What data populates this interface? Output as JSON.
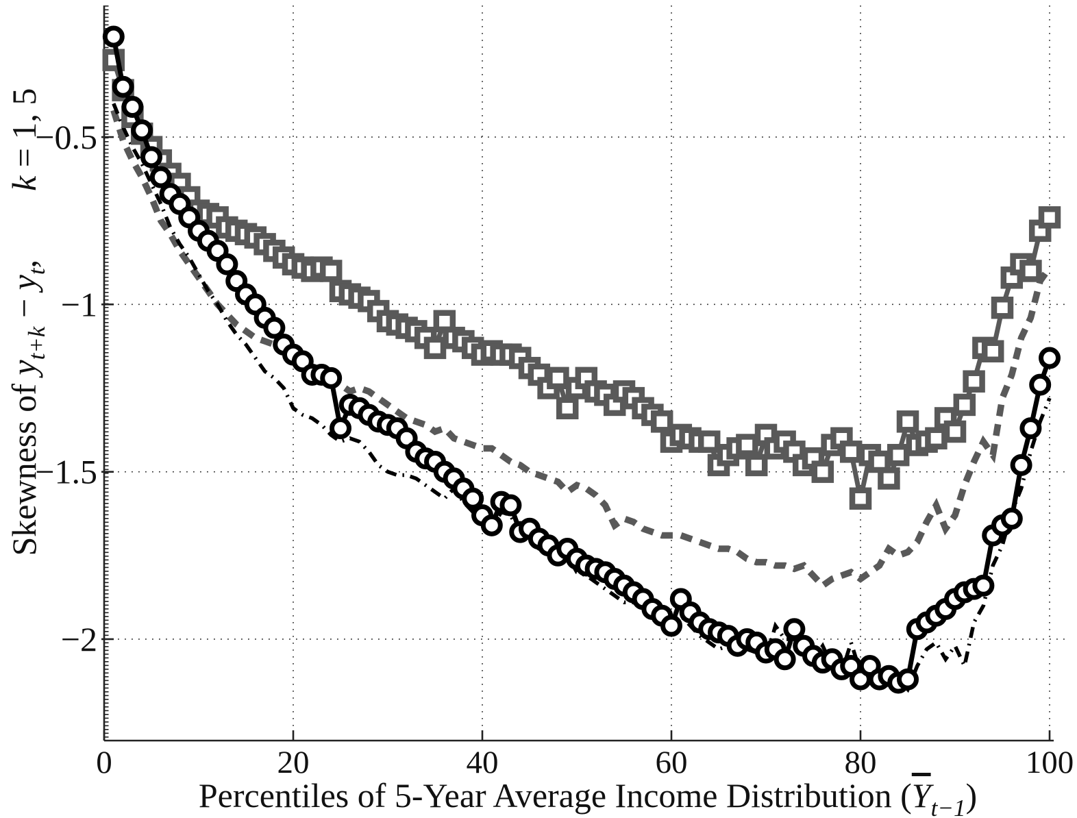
{
  "figure": {
    "background": "#ffffff",
    "axis_color": "#222222",
    "grid_color": "#2e2e2e"
  },
  "chart_data": {
    "type": "line",
    "title": "",
    "xlabel": "Percentiles of 5-Year Average Income Distribution (Y̅_{t−1})",
    "ylabel": "Skewness of y_{t+k} − y_t,  k = 1, 5",
    "xlabel_segments": [
      {
        "text": "Percentiles of 5-Year Average Income Distribution (",
        "italic": false
      },
      {
        "text": "Y",
        "italic": true,
        "overline": true
      },
      {
        "text": "t−1",
        "italic": true,
        "sub": true
      },
      {
        "text": ")",
        "italic": false
      }
    ],
    "ylabel_segments": [
      {
        "text": "Skewness of ",
        "italic": false
      },
      {
        "text": "y",
        "italic": true
      },
      {
        "text": "t+k",
        "italic": true,
        "sub": true
      },
      {
        "text": " − ",
        "italic": false
      },
      {
        "text": "y",
        "italic": true
      },
      {
        "text": "t",
        "italic": true,
        "sub": true
      },
      {
        "text": ",  ",
        "italic": false
      },
      {
        "text": "k",
        "italic": true
      },
      {
        "text": " = 1, 5",
        "italic": false
      }
    ],
    "xlim": [
      0,
      100
    ],
    "ylim": [
      -2.303,
      -0.107
    ],
    "x_ticks": [
      0,
      20,
      40,
      60,
      80,
      100
    ],
    "x_tick_labels": [
      "0",
      "20",
      "40",
      "60",
      "80",
      "100"
    ],
    "y_ticks": [
      -0.5,
      -1,
      -1.5,
      -2
    ],
    "y_tick_labels": [
      "−0.5",
      "−1",
      "−1.5",
      "−2"
    ],
    "grid": true,
    "legend": "none",
    "x": [
      1,
      2,
      3,
      4,
      5,
      6,
      7,
      8,
      9,
      10,
      11,
      12,
      13,
      14,
      15,
      16,
      17,
      18,
      19,
      20,
      21,
      22,
      23,
      24,
      25,
      26,
      27,
      28,
      29,
      30,
      31,
      32,
      33,
      34,
      35,
      36,
      37,
      38,
      39,
      40,
      41,
      42,
      43,
      44,
      45,
      46,
      47,
      48,
      49,
      50,
      51,
      52,
      53,
      54,
      55,
      56,
      57,
      58,
      59,
      60,
      61,
      62,
      63,
      64,
      65,
      66,
      67,
      68,
      69,
      70,
      71,
      72,
      73,
      74,
      75,
      76,
      77,
      78,
      79,
      80,
      81,
      82,
      83,
      84,
      85,
      86,
      87,
      88,
      89,
      90,
      91,
      92,
      93,
      94,
      95,
      96,
      97,
      98,
      99,
      100
    ],
    "series": [
      {
        "name": "solid-circle-markers",
        "marker": "circle",
        "style": "solid",
        "color": "#000000",
        "values": [
          -0.2,
          -0.35,
          -0.41,
          -0.48,
          -0.56,
          -0.62,
          -0.67,
          -0.7,
          -0.74,
          -0.78,
          -0.81,
          -0.84,
          -0.88,
          -0.93,
          -0.97,
          -1.0,
          -1.04,
          -1.07,
          -1.12,
          -1.15,
          -1.17,
          -1.21,
          -1.21,
          -1.22,
          -1.37,
          -1.3,
          -1.31,
          -1.33,
          -1.35,
          -1.36,
          -1.37,
          -1.4,
          -1.44,
          -1.46,
          -1.47,
          -1.5,
          -1.52,
          -1.55,
          -1.58,
          -1.63,
          -1.66,
          -1.59,
          -1.6,
          -1.68,
          -1.67,
          -1.7,
          -1.72,
          -1.75,
          -1.73,
          -1.76,
          -1.78,
          -1.79,
          -1.8,
          -1.82,
          -1.84,
          -1.86,
          -1.88,
          -1.91,
          -1.93,
          -1.96,
          -1.88,
          -1.92,
          -1.95,
          -1.97,
          -1.98,
          -1.99,
          -2.02,
          -2.0,
          -2.01,
          -2.04,
          -2.03,
          -2.06,
          -1.97,
          -2.02,
          -2.05,
          -2.07,
          -2.06,
          -2.09,
          -2.08,
          -2.12,
          -2.08,
          -2.12,
          -2.11,
          -2.13,
          -2.12,
          -1.97,
          -1.95,
          -1.93,
          -1.91,
          -1.88,
          -1.86,
          -1.85,
          -1.84,
          -1.69,
          -1.66,
          -1.64,
          -1.48,
          -1.37,
          -1.24,
          -1.16
        ]
      },
      {
        "name": "solid-square-markers",
        "marker": "square",
        "style": "solid",
        "color": "#595959",
        "values": [
          -0.27,
          -0.36,
          -0.44,
          -0.49,
          -0.53,
          -0.57,
          -0.61,
          -0.64,
          -0.68,
          -0.72,
          -0.73,
          -0.74,
          -0.77,
          -0.78,
          -0.79,
          -0.8,
          -0.82,
          -0.84,
          -0.86,
          -0.88,
          -0.89,
          -0.9,
          -0.89,
          -0.9,
          -0.96,
          -0.97,
          -0.98,
          -0.99,
          -1.02,
          -1.05,
          -1.06,
          -1.07,
          -1.08,
          -1.1,
          -1.13,
          -1.05,
          -1.1,
          -1.11,
          -1.13,
          -1.15,
          -1.14,
          -1.15,
          -1.15,
          -1.16,
          -1.19,
          -1.21,
          -1.25,
          -1.22,
          -1.31,
          -1.25,
          -1.22,
          -1.26,
          -1.27,
          -1.3,
          -1.26,
          -1.28,
          -1.31,
          -1.33,
          -1.35,
          -1.41,
          -1.39,
          -1.4,
          -1.41,
          -1.41,
          -1.48,
          -1.45,
          -1.43,
          -1.42,
          -1.48,
          -1.39,
          -1.43,
          -1.41,
          -1.44,
          -1.48,
          -1.46,
          -1.5,
          -1.42,
          -1.4,
          -1.44,
          -1.58,
          -1.45,
          -1.47,
          -1.52,
          -1.45,
          -1.35,
          -1.42,
          -1.41,
          -1.4,
          -1.34,
          -1.38,
          -1.3,
          -1.23,
          -1.13,
          -1.14,
          -1.01,
          -0.92,
          -0.88,
          -0.9,
          -0.78,
          -0.74
        ]
      },
      {
        "name": "gray-dashed",
        "marker": "none",
        "style": "dashed",
        "color": "#595959",
        "values": [
          -0.42,
          -0.51,
          -0.57,
          -0.62,
          -0.68,
          -0.75,
          -0.79,
          -0.84,
          -0.88,
          -0.92,
          -0.96,
          -1.0,
          -1.03,
          -1.06,
          -1.08,
          -1.1,
          -1.11,
          -1.12,
          -1.13,
          -1.15,
          -1.16,
          -1.19,
          -1.2,
          -1.21,
          -1.24,
          -1.26,
          -1.25,
          -1.26,
          -1.28,
          -1.3,
          -1.32,
          -1.34,
          -1.35,
          -1.36,
          -1.38,
          -1.37,
          -1.4,
          -1.41,
          -1.42,
          -1.43,
          -1.43,
          -1.45,
          -1.47,
          -1.48,
          -1.5,
          -1.51,
          -1.52,
          -1.53,
          -1.56,
          -1.54,
          -1.55,
          -1.57,
          -1.6,
          -1.66,
          -1.64,
          -1.65,
          -1.67,
          -1.68,
          -1.69,
          -1.69,
          -1.69,
          -1.7,
          -1.71,
          -1.72,
          -1.73,
          -1.73,
          -1.74,
          -1.76,
          -1.77,
          -1.77,
          -1.78,
          -1.78,
          -1.79,
          -1.78,
          -1.81,
          -1.84,
          -1.82,
          -1.81,
          -1.8,
          -1.82,
          -1.8,
          -1.78,
          -1.73,
          -1.75,
          -1.74,
          -1.71,
          -1.65,
          -1.6,
          -1.67,
          -1.63,
          -1.54,
          -1.47,
          -1.41,
          -1.45,
          -1.28,
          -1.21,
          -1.1,
          -1.04,
          -0.93,
          -0.89
        ]
      },
      {
        "name": "black-dash-dot",
        "marker": "none",
        "style": "dashdot",
        "color": "#000000",
        "values": [
          -0.4,
          -0.47,
          -0.53,
          -0.58,
          -0.64,
          -0.7,
          -0.77,
          -0.82,
          -0.86,
          -0.91,
          -0.96,
          -1.0,
          -1.05,
          -1.09,
          -1.12,
          -1.16,
          -1.2,
          -1.22,
          -1.25,
          -1.31,
          -1.33,
          -1.34,
          -1.36,
          -1.39,
          -1.41,
          -1.4,
          -1.41,
          -1.44,
          -1.48,
          -1.5,
          -1.51,
          -1.51,
          -1.52,
          -1.54,
          -1.56,
          -1.58,
          -1.55,
          -1.59,
          -1.62,
          -1.65,
          -1.67,
          -1.62,
          -1.63,
          -1.69,
          -1.71,
          -1.73,
          -1.74,
          -1.76,
          -1.75,
          -1.8,
          -1.81,
          -1.83,
          -1.85,
          -1.87,
          -1.89,
          -1.89,
          -1.91,
          -1.93,
          -1.95,
          -1.97,
          -1.93,
          -1.96,
          -1.99,
          -2.01,
          -2.03,
          -2.02,
          -2.05,
          -2.03,
          -2.04,
          -2.06,
          -1.96,
          -2.0,
          -2.0,
          -2.03,
          -2.06,
          -2.02,
          -2.08,
          -2.1,
          -2.01,
          -2.1,
          -2.1,
          -2.08,
          -2.09,
          -2.12,
          -2.15,
          -2.08,
          -2.03,
          -2.01,
          -2.06,
          -2.02,
          -2.08,
          -1.95,
          -1.9,
          -1.78,
          -1.72,
          -1.62,
          -1.55,
          -1.44,
          -1.35,
          -1.28
        ]
      }
    ]
  }
}
